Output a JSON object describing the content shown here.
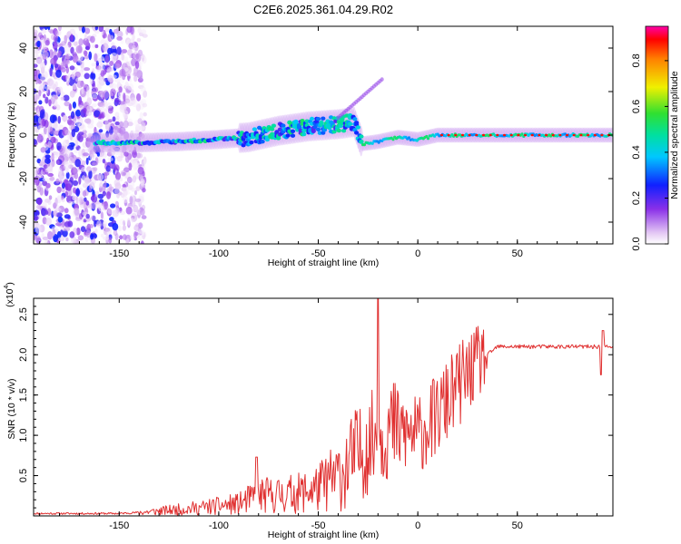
{
  "title": "C2E6.2025.361.04.29.R02",
  "chart_data": [
    {
      "type": "heatmap",
      "name": "spectrogram",
      "xlabel": "Height of straight line (km)",
      "ylabel": "Frequency (Hz)",
      "xlim": [
        -193,
        98
      ],
      "ylim": [
        -50,
        50
      ],
      "xticks": [
        -150,
        -100,
        -50,
        0,
        50
      ],
      "yticks": [
        -40,
        -20,
        0,
        20,
        40
      ],
      "description_of_signal": "noise scatter for heights < -137 km; tonal line near 0 Hz from about -160 km to 98 km, rising to about +8 Hz near -30 km, then flat at 0 Hz from -28 km on",
      "ridge": {
        "x": [
          -160,
          -140,
          -120,
          -100,
          -85,
          -70,
          -55,
          -40,
          -32,
          -28,
          -20,
          -10,
          0,
          10,
          98
        ],
        "y": [
          -3.5,
          -3.5,
          -3,
          -2,
          -1,
          2,
          4,
          5,
          6,
          -4,
          -3,
          -1,
          -2,
          0,
          0
        ]
      },
      "colorbar": {
        "label": "Normalized spectral amplitude",
        "ticks": [
          0.0,
          0.2,
          0.4,
          0.6,
          0.8
        ],
        "range": [
          0,
          0.95
        ]
      }
    },
    {
      "type": "line",
      "name": "snr",
      "xlabel": "Height of straight line (km)",
      "ylabel": "SNR (10 * v/v)",
      "scale_label": "(x10",
      "scale_exp": "4",
      "xlim": [
        -193,
        98
      ],
      "ylim": [
        0,
        27000
      ],
      "xticks": [
        -150,
        -100,
        -50,
        0,
        50
      ],
      "yticks": [
        5000,
        10000,
        15000,
        20000,
        25000
      ],
      "ytick_labels": [
        "0.5",
        "1.0",
        "1.5",
        "2.0",
        "2.5"
      ],
      "color": "#e03030",
      "anchors_x": [
        -193,
        -150,
        -135,
        -110,
        -90,
        -80,
        -70,
        -60,
        -50,
        -40,
        -30,
        -20,
        -15,
        -10,
        0,
        10,
        20,
        30,
        40,
        60,
        90,
        98
      ],
      "anchors_y": [
        300,
        300,
        500,
        1000,
        1500,
        2500,
        2600,
        2800,
        3500,
        5000,
        7500,
        10000,
        11000,
        10500,
        10000,
        12500,
        16000,
        19000,
        21000,
        21000,
        21000,
        21000
      ],
      "peaks": [
        {
          "x": -81,
          "y": 7300
        },
        {
          "x": -20,
          "y": 27000
        },
        {
          "x": 93,
          "y": 23000
        },
        {
          "x": 92,
          "y": 17500
        }
      ]
    }
  ]
}
